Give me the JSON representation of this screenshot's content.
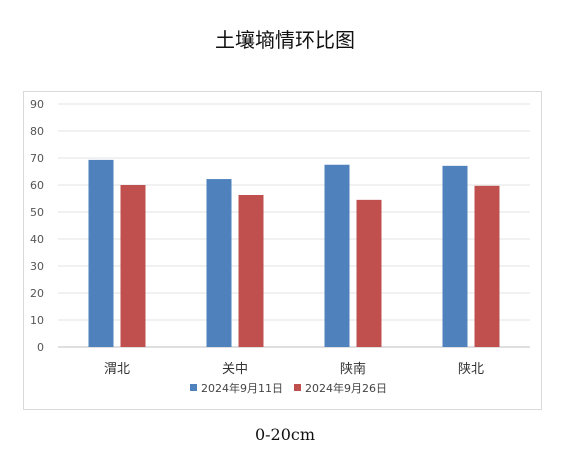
{
  "title": "土壤墒情环比图",
  "caption": "0-20cm",
  "chart_data": {
    "type": "bar",
    "categories": [
      "渭北",
      "关中",
      "陕南",
      "陕北"
    ],
    "series": [
      {
        "name": "2024年9月11日",
        "color": "#4f81bd",
        "values": [
          69.3,
          62.2,
          67.5,
          67.1
        ]
      },
      {
        "name": "2024年9月26日",
        "color": "#c0504d",
        "values": [
          60.0,
          56.3,
          54.5,
          59.7
        ]
      }
    ],
    "ylim": [
      0,
      90
    ],
    "yticks": [
      0,
      10,
      20,
      30,
      40,
      50,
      60,
      70,
      80,
      90
    ],
    "grid": true,
    "legend": "bottom"
  }
}
